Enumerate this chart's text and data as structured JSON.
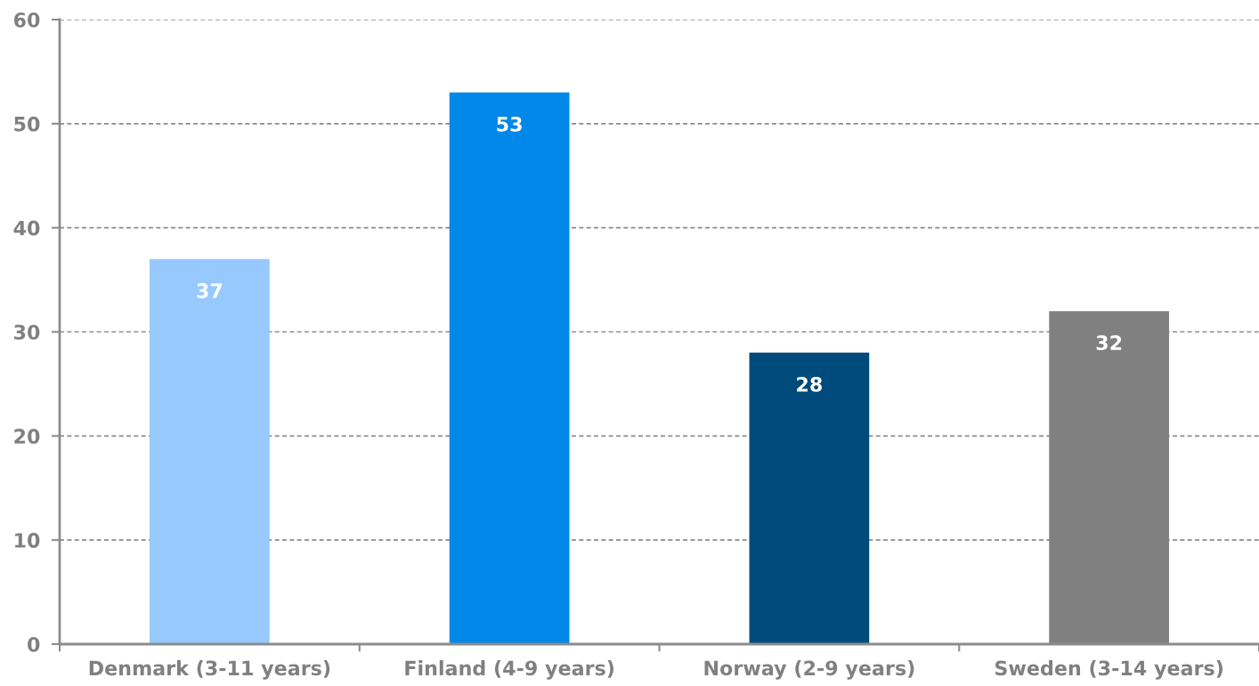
{
  "chart_data": {
    "type": "bar",
    "categories": [
      "Denmark (3-11 years)",
      "Finland (4-9 years)",
      "Norway (2-9 years)",
      "Sweden (3-14 years)"
    ],
    "values": [
      37,
      53,
      28,
      32
    ],
    "colors": [
      "#97c9ff",
      "#0288e8",
      "#004a7c",
      "#808080"
    ],
    "ylim": [
      0,
      60
    ],
    "yticks": [
      0,
      10,
      20,
      30,
      40,
      50,
      60
    ],
    "grid": "y",
    "data_labels": true
  }
}
